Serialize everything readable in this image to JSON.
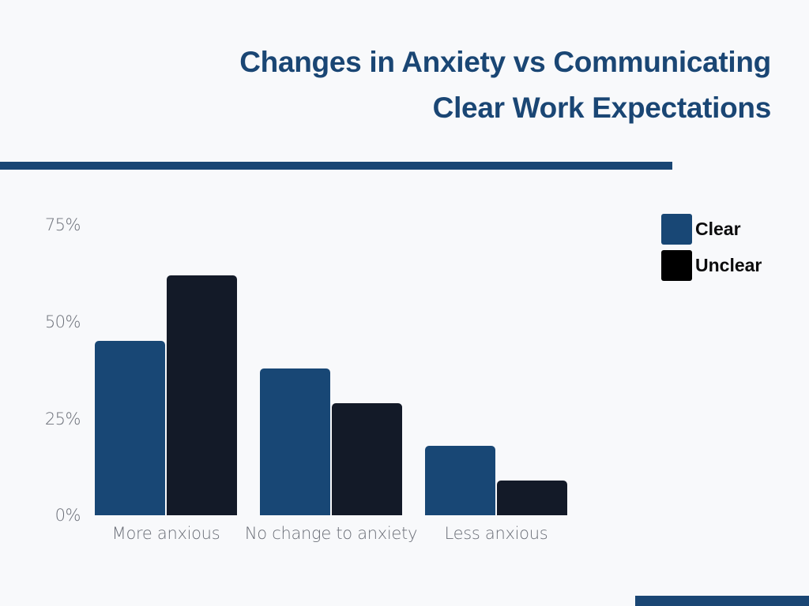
{
  "title": {
    "line1": "Changes in Anxiety vs Communicating",
    "line2": "Clear Work Expectations"
  },
  "colors": {
    "clear": "#184775",
    "unclear": "#131a28",
    "accent": "#1a4674",
    "background": "#f8f9fb",
    "axis_text": "#6b6f78"
  },
  "axis": {
    "y_ticks": [
      "75%",
      "50%",
      "25%",
      "0%"
    ]
  },
  "legend": {
    "items": [
      {
        "label": "Clear",
        "color": "#184775"
      },
      {
        "label": "Unclear",
        "color": "#000000"
      }
    ]
  },
  "chart_data": {
    "type": "bar",
    "title": "Changes in Anxiety vs Communicating Clear Work Expectations",
    "categories": [
      "More anxious",
      "No change to anxiety",
      "Less anxious"
    ],
    "series": [
      {
        "name": "Clear",
        "values": [
          45,
          38,
          18
        ]
      },
      {
        "name": "Unclear",
        "values": [
          62,
          29,
          9
        ]
      }
    ],
    "xlabel": "",
    "ylabel": "",
    "ylim": [
      0,
      75
    ],
    "y_ticks": [
      0,
      25,
      50,
      75
    ],
    "y_tick_format": "percent",
    "grid": false,
    "legend_position": "top-right"
  }
}
